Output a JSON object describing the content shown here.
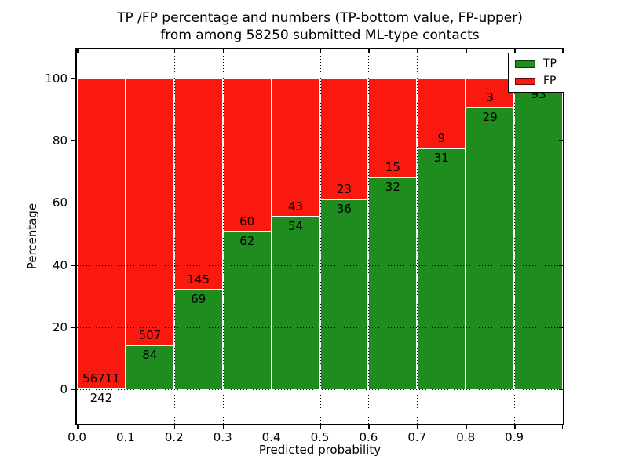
{
  "figure": {
    "title_line1": "TP /FP percentage and numbers (TP-bottom value, FP-upper)",
    "title_line2": "from among 58250 submitted ML-type contacts"
  },
  "chart_data": {
    "type": "bar",
    "stacked": true,
    "title": "TP /FP percentage and numbers (TP-bottom value, FP-upper)\nfrom among 58250 submitted ML-type contacts",
    "xlabel": "Predicted probability",
    "ylabel": "Percentage",
    "xlim": [
      0.0,
      1.0
    ],
    "ylim": [
      -11,
      109.3
    ],
    "bin_width": 0.1,
    "x_tick_labels": [
      "0.0",
      "0.1",
      "0.2",
      "0.3",
      "0.4",
      "0.5",
      "0.6",
      "0.7",
      "0.8",
      "0.9"
    ],
    "y_tick_values": [
      0,
      20,
      40,
      60,
      80,
      100
    ],
    "grid_style": "dotted",
    "legend_position": "upper right",
    "legend": [
      {
        "name": "TP",
        "color": "#1e8c1e"
      },
      {
        "name": "FP",
        "color": "#fa190f"
      }
    ],
    "colors": {
      "tp": "#1e8c1e",
      "fp": "#fa190f",
      "grid": "#000000",
      "background": "#ffffff",
      "bar_edge": "#ffffff"
    },
    "bars": [
      {
        "x0": 0.0,
        "tp_count": 242,
        "fp_count": 56711,
        "tp_pct": 0.42,
        "tp_label": "242",
        "fp_label": "56711"
      },
      {
        "x0": 0.1,
        "tp_count": 84,
        "fp_count": 507,
        "tp_pct": 14.21,
        "tp_label": "84",
        "fp_label": "507"
      },
      {
        "x0": 0.2,
        "tp_count": 69,
        "fp_count": 145,
        "tp_pct": 32.24,
        "tp_label": "69",
        "fp_label": "145"
      },
      {
        "x0": 0.3,
        "tp_count": 62,
        "fp_count": 60,
        "tp_pct": 50.82,
        "tp_label": "62",
        "fp_label": "60"
      },
      {
        "x0": 0.4,
        "tp_count": 54,
        "fp_count": 43,
        "tp_pct": 55.67,
        "tp_label": "54",
        "fp_label": "43"
      },
      {
        "x0": 0.5,
        "tp_count": 36,
        "fp_count": 23,
        "tp_pct": 61.02,
        "tp_label": "36",
        "fp_label": "23"
      },
      {
        "x0": 0.6,
        "tp_count": 32,
        "fp_count": 15,
        "tp_pct": 68.09,
        "tp_label": "32",
        "fp_label": "15"
      },
      {
        "x0": 0.7,
        "tp_count": 31,
        "fp_count": 9,
        "tp_pct": 77.5,
        "tp_label": "31",
        "fp_label": "9"
      },
      {
        "x0": 0.8,
        "tp_count": 29,
        "fp_count": 3,
        "tp_pct": 90.63,
        "tp_label": "29",
        "fp_label": "3"
      },
      {
        "x0": 0.9,
        "tp_count": 93,
        "tp_pct": 97.89,
        "tp_label": "93",
        "fp_label": ""
      }
    ]
  }
}
